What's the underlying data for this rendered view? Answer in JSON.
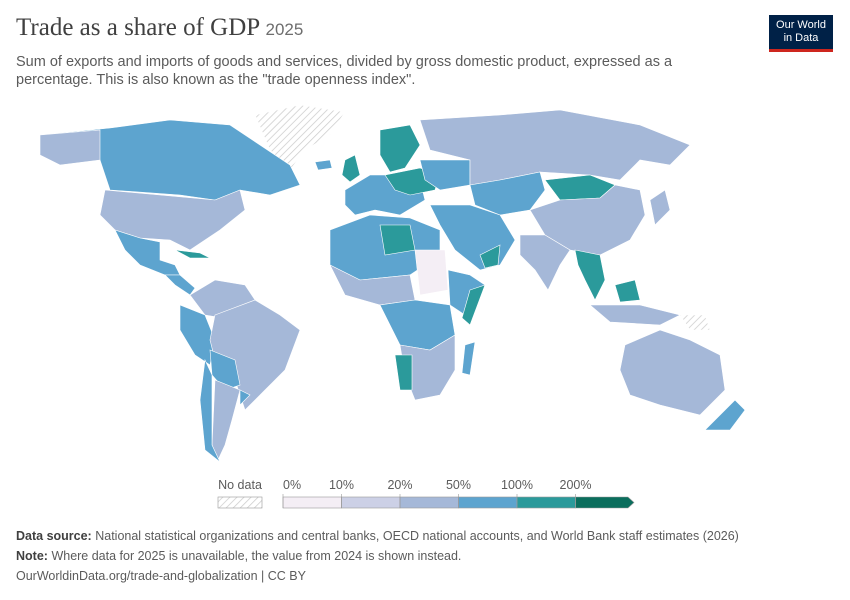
{
  "header": {
    "title": "Trade as a share of GDP",
    "year": "2025",
    "subtitle": "Sum of exports and imports of goods and services, divided by gross domestic product, expressed as a percentage. This is also known as the \"trade openness index\".",
    "logo": [
      "Our World",
      "in Data"
    ]
  },
  "legend": {
    "no_data_label": "No data",
    "ticks": [
      {
        "value": 0,
        "label": "0%"
      },
      {
        "value": 10,
        "label": "10%"
      },
      {
        "value": 20,
        "label": "20%"
      },
      {
        "value": 50,
        "label": "50%"
      },
      {
        "value": 100,
        "label": "100%"
      },
      {
        "value": 200,
        "label": "200%"
      }
    ],
    "colors": [
      "#f4eef5",
      "#ccd0e6",
      "#a5b8d8",
      "#5da4cf",
      "#2b9a9b",
      "#0b6e5d"
    ]
  },
  "footer": {
    "source_label": "Data source:",
    "source": "National statistical organizations and central banks, OECD national accounts, and World Bank staff estimates (2026)",
    "note_label": "Note:",
    "note": "Where data for 2025 is unavailable, the value from 2024 is shown instead.",
    "link": "OurWorldinData.org/trade-and-globalization | CC BY"
  }
}
